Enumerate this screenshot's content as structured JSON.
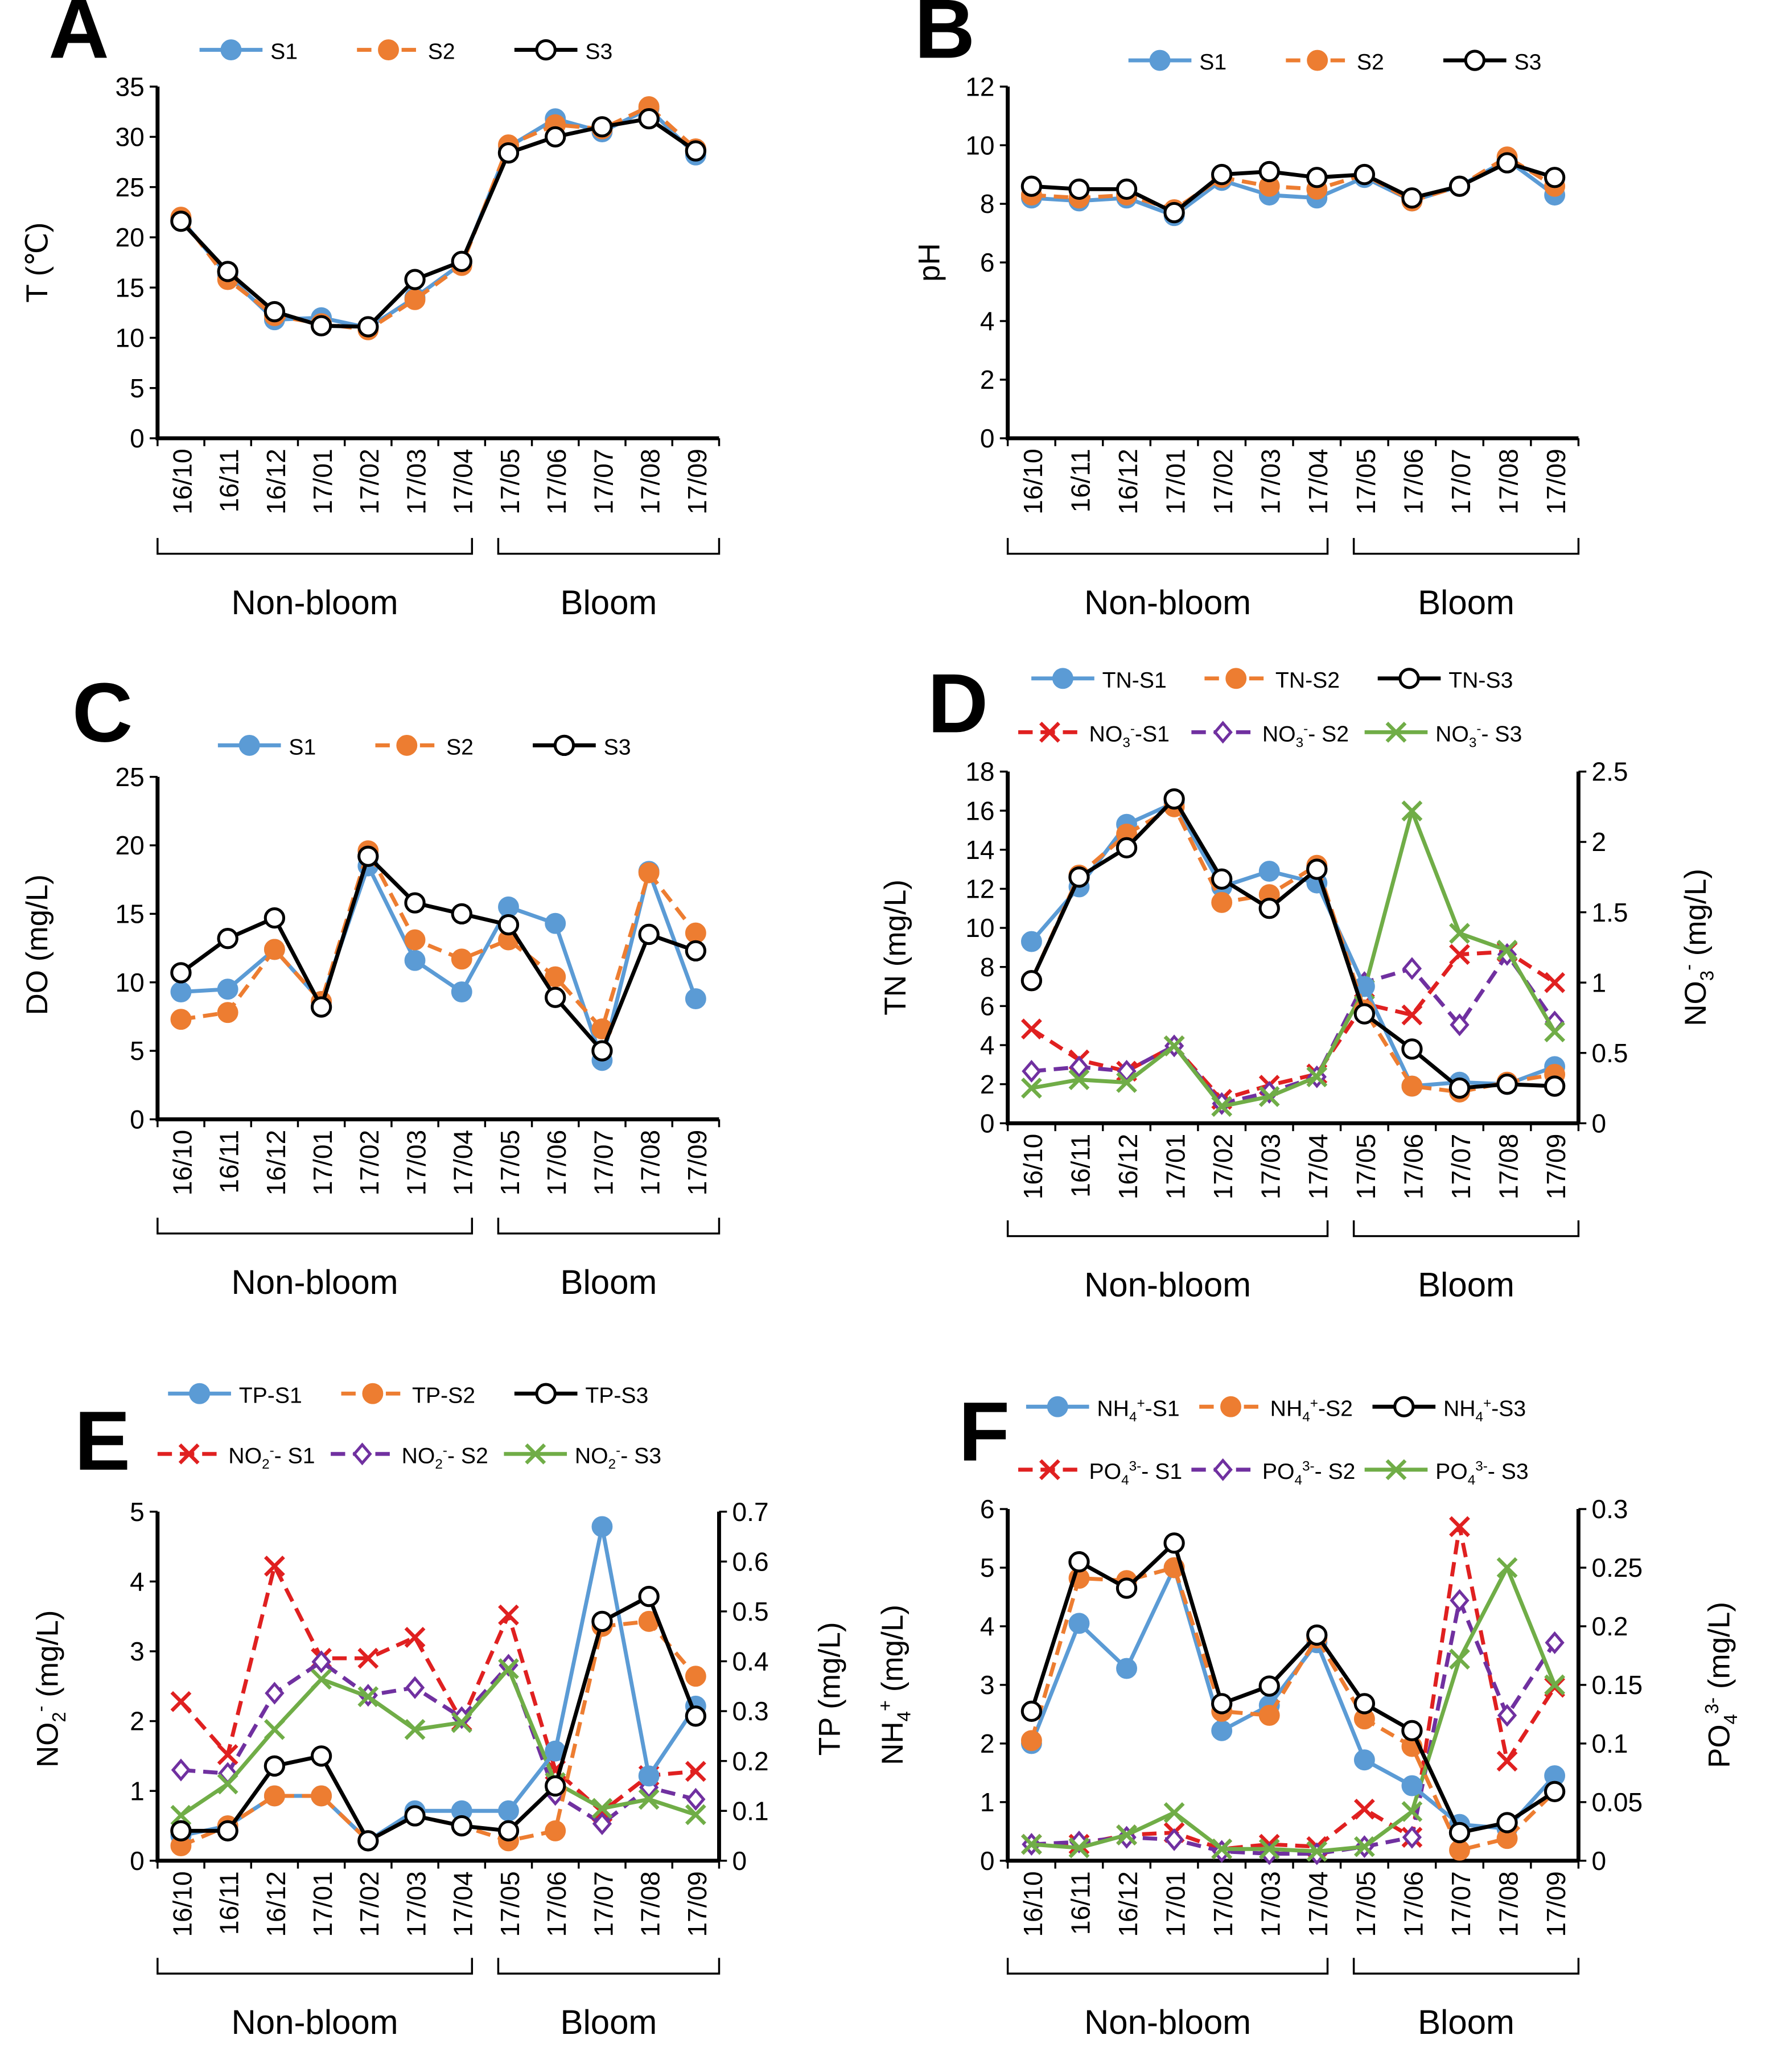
{
  "months": [
    "16/10",
    "16/11",
    "16/12",
    "17/01",
    "17/02",
    "17/03",
    "17/04",
    "17/05",
    "17/06",
    "17/07",
    "17/08",
    "17/09"
  ],
  "periods": {
    "non_bloom": "Non-bloom",
    "bloom": "Bloom"
  },
  "styles": {
    "S1": {
      "color": "#5b9bd5",
      "dash": "",
      "marker": "filled-circle"
    },
    "S2": {
      "color": "#ed7d31",
      "dash": "22,12",
      "marker": "filled-circle"
    },
    "S3": {
      "color": "#000000",
      "dash": "",
      "marker": "open-circle"
    },
    "X1": {
      "color": "#e02020",
      "dash": "22,12",
      "marker": "x"
    },
    "X2": {
      "color": "#7030a0",
      "dash": "22,12",
      "marker": "open-diamond"
    },
    "X3": {
      "color": "#70ad47",
      "dash": "",
      "marker": "x"
    }
  },
  "chart_data": [
    {
      "panel": "A",
      "type": "line",
      "ylabel": "T (℃)",
      "ylim": [
        0,
        35
      ],
      "yticks": [
        0,
        5,
        10,
        15,
        20,
        25,
        30,
        35
      ],
      "series": [
        {
          "name": "S1",
          "style": "S1",
          "axis": "left",
          "values": [
            21.8,
            16.2,
            11.8,
            12.0,
            11.0,
            14.0,
            17.4,
            29.0,
            31.8,
            30.5,
            32.8,
            28.2
          ]
        },
        {
          "name": "S2",
          "style": "S2",
          "axis": "left",
          "values": [
            22.0,
            15.8,
            12.2,
            11.4,
            10.8,
            13.8,
            17.2,
            29.2,
            31.2,
            30.8,
            33.0,
            28.8
          ]
        },
        {
          "name": "S3",
          "style": "S3",
          "axis": "left",
          "values": [
            21.6,
            16.6,
            12.6,
            11.2,
            11.1,
            15.8,
            17.6,
            28.4,
            30.0,
            31.0,
            31.8,
            28.6
          ]
        }
      ],
      "legend": [
        [
          "S1",
          "S2",
          "S3"
        ]
      ]
    },
    {
      "panel": "B",
      "type": "line",
      "ylabel": "pH",
      "ylim": [
        0,
        12
      ],
      "yticks": [
        0,
        2,
        4,
        6,
        8,
        10,
        12
      ],
      "series": [
        {
          "name": "S1",
          "style": "S1",
          "axis": "left",
          "values": [
            8.2,
            8.1,
            8.2,
            7.6,
            8.8,
            8.3,
            8.2,
            8.9,
            8.1,
            8.6,
            9.5,
            8.3
          ]
        },
        {
          "name": "S2",
          "style": "S2",
          "axis": "left",
          "values": [
            8.3,
            8.2,
            8.3,
            7.8,
            8.9,
            8.6,
            8.5,
            9.0,
            8.1,
            8.6,
            9.6,
            8.6
          ]
        },
        {
          "name": "S3",
          "style": "S3",
          "axis": "left",
          "values": [
            8.6,
            8.5,
            8.5,
            7.7,
            9.0,
            9.1,
            8.9,
            9.0,
            8.2,
            8.6,
            9.4,
            8.9
          ]
        }
      ],
      "legend": [
        [
          "S1",
          "S2",
          "S3"
        ]
      ]
    },
    {
      "panel": "C",
      "type": "line",
      "ylabel": "DO (mg/L)",
      "ylim": [
        0,
        25
      ],
      "yticks": [
        0,
        5,
        10,
        15,
        20,
        25
      ],
      "series": [
        {
          "name": "S1",
          "style": "S1",
          "axis": "left",
          "values": [
            9.3,
            9.5,
            12.4,
            8.6,
            18.5,
            11.6,
            9.3,
            15.5,
            14.3,
            4.3,
            18.1,
            8.8
          ]
        },
        {
          "name": "S2",
          "style": "S2",
          "axis": "left",
          "values": [
            7.3,
            7.8,
            12.4,
            8.6,
            19.6,
            13.1,
            11.7,
            13.1,
            10.4,
            6.6,
            18.0,
            13.6
          ]
        },
        {
          "name": "S3",
          "style": "S3",
          "axis": "left",
          "values": [
            10.7,
            13.2,
            14.7,
            8.2,
            19.2,
            15.8,
            15.0,
            14.2,
            8.9,
            5.0,
            13.5,
            12.3
          ]
        }
      ],
      "legend": [
        [
          "S1",
          "S2",
          "S3"
        ]
      ]
    },
    {
      "panel": "D",
      "type": "line",
      "ylabel": "TN (mg/L)",
      "ylim": [
        0,
        18
      ],
      "yticks": [
        0,
        2,
        4,
        6,
        8,
        10,
        12,
        14,
        16,
        18
      ],
      "ylabel2": "NO3- (mg/L)",
      "ylim2": [
        0,
        2.5
      ],
      "yticks2": [
        "0",
        "0.5",
        "1",
        "1.5",
        "2",
        "2.5"
      ],
      "series": [
        {
          "name": "TN-S1",
          "style": "S1",
          "axis": "left",
          "values": [
            9.3,
            12.1,
            15.3,
            16.4,
            12.1,
            12.9,
            12.3,
            7.0,
            1.9,
            2.1,
            2.0,
            2.9
          ]
        },
        {
          "name": "TN-S2",
          "style": "S2",
          "axis": "left",
          "values": [
            7.3,
            12.7,
            14.8,
            16.2,
            11.3,
            11.7,
            13.2,
            5.8,
            1.9,
            1.6,
            2.1,
            2.5
          ]
        },
        {
          "name": "TN-S3",
          "style": "S3",
          "axis": "left",
          "values": [
            7.3,
            12.6,
            14.1,
            16.6,
            12.5,
            11.0,
            13.0,
            5.6,
            3.8,
            1.8,
            2.0,
            1.9
          ]
        },
        {
          "name": "NO3--S1",
          "style": "X1",
          "axis": "right",
          "values": [
            0.67,
            0.45,
            0.37,
            0.55,
            0.17,
            0.27,
            0.35,
            0.85,
            0.77,
            1.2,
            1.22,
            1.0
          ]
        },
        {
          "name": "NO3-- S2",
          "style": "X2",
          "axis": "right",
          "values": [
            0.37,
            0.4,
            0.37,
            0.55,
            0.14,
            0.22,
            0.33,
            1.0,
            1.1,
            0.7,
            1.2,
            0.72
          ]
        },
        {
          "name": "NO3-- S3",
          "style": "X3",
          "axis": "right",
          "values": [
            0.25,
            0.31,
            0.29,
            0.55,
            0.12,
            0.19,
            0.33,
            0.95,
            2.22,
            1.35,
            1.23,
            0.65
          ]
        }
      ],
      "legend": [
        [
          "TN-S1",
          "TN-S2",
          "TN-S3"
        ],
        [
          "NO3--S1",
          "NO3-- S2",
          "NO3-- S3"
        ]
      ]
    },
    {
      "panel": "E",
      "type": "line",
      "ylabel": "NO2- (mg/L)",
      "ylim": [
        0,
        5
      ],
      "yticks": [
        0,
        1,
        2,
        3,
        4,
        5
      ],
      "ylabel2": "TP (mg/L)",
      "ylim2": [
        0,
        0.7
      ],
      "yticks2": [
        "0",
        "0.1",
        "0.2",
        "0.3",
        "0.4",
        "0.5",
        "0.6",
        "0.7"
      ],
      "series": [
        {
          "name": "TP-S1",
          "style": "S1",
          "axis": "right",
          "values": [
            0.05,
            0.07,
            0.13,
            0.13,
            0.04,
            0.1,
            0.1,
            0.1,
            0.22,
            0.67,
            0.17,
            0.31
          ]
        },
        {
          "name": "TP-S2",
          "style": "S2",
          "axis": "right",
          "values": [
            0.03,
            0.07,
            0.13,
            0.13,
            0.04,
            0.09,
            0.07,
            0.04,
            0.06,
            0.47,
            0.48,
            0.37
          ]
        },
        {
          "name": "TP-S3",
          "style": "S3",
          "axis": "right",
          "values": [
            0.06,
            0.06,
            0.19,
            0.21,
            0.04,
            0.09,
            0.07,
            0.06,
            0.15,
            0.48,
            0.53,
            0.29
          ]
        },
        {
          "name": "NO2-- S1",
          "style": "X1",
          "axis": "left",
          "values": [
            2.28,
            1.52,
            4.22,
            2.9,
            2.9,
            3.2,
            2.0,
            3.52,
            1.3,
            0.7,
            1.22,
            1.28
          ]
        },
        {
          "name": "NO2-- S2",
          "style": "X2",
          "axis": "left",
          "values": [
            1.3,
            1.25,
            2.4,
            2.85,
            2.37,
            2.48,
            2.05,
            2.8,
            0.95,
            0.53,
            1.05,
            0.88
          ]
        },
        {
          "name": "NO2-- S3",
          "style": "X3",
          "axis": "left",
          "values": [
            0.65,
            1.1,
            1.88,
            2.6,
            2.35,
            1.88,
            1.98,
            2.75,
            1.12,
            0.75,
            0.88,
            0.66
          ]
        }
      ],
      "legend": [
        [
          "TP-S1",
          "TP-S2",
          "TP-S3"
        ],
        [
          "NO2-- S1",
          "NO2-- S2",
          "NO2-- S3"
        ]
      ]
    },
    {
      "panel": "F",
      "type": "line",
      "ylabel": "NH4+ (mg/L)",
      "ylim": [
        0,
        6
      ],
      "yticks": [
        0,
        1,
        2,
        3,
        4,
        5,
        6
      ],
      "ylabel2": "PO43- (mg/L)",
      "ylim2": [
        0,
        0.3
      ],
      "yticks2": [
        "0",
        "0.05",
        "0.1",
        "0.15",
        "0.2",
        "0.25",
        "0.3"
      ],
      "series": [
        {
          "name": "NH4+-S1",
          "style": "S1",
          "axis": "left",
          "values": [
            2.0,
            4.05,
            3.28,
            5.0,
            2.22,
            2.65,
            3.72,
            1.72,
            1.28,
            0.62,
            0.55,
            1.45
          ]
        },
        {
          "name": "NH4+-S2",
          "style": "S2",
          "axis": "left",
          "values": [
            2.05,
            4.82,
            4.78,
            5.0,
            2.55,
            2.48,
            3.8,
            2.42,
            1.95,
            0.18,
            0.38,
            1.18
          ]
        },
        {
          "name": "NH4+-S3",
          "style": "S3",
          "axis": "left",
          "values": [
            2.55,
            5.1,
            4.65,
            5.42,
            2.68,
            2.98,
            3.85,
            2.68,
            2.22,
            0.48,
            0.65,
            1.18
          ]
        },
        {
          "name": "PO43-- S1",
          "style": "X1",
          "axis": "right",
          "values": [
            0.014,
            0.014,
            0.022,
            0.024,
            0.01,
            0.014,
            0.012,
            0.044,
            0.02,
            0.285,
            0.085,
            0.148
          ]
        },
        {
          "name": "PO43-- S2",
          "style": "X2",
          "axis": "right",
          "values": [
            0.014,
            0.016,
            0.02,
            0.018,
            0.008,
            0.006,
            0.006,
            0.012,
            0.02,
            0.222,
            0.124,
            0.186
          ]
        },
        {
          "name": "PO43-- S3",
          "style": "X3",
          "axis": "right",
          "values": [
            0.014,
            0.011,
            0.022,
            0.041,
            0.01,
            0.01,
            0.008,
            0.012,
            0.042,
            0.172,
            0.25,
            0.15
          ]
        }
      ],
      "legend": [
        [
          "NH4+-S1",
          "NH4+-S2",
          "NH4+-S3"
        ],
        [
          "PO43-- S1",
          "PO43-- S2",
          "PO43-- S3"
        ]
      ]
    }
  ]
}
